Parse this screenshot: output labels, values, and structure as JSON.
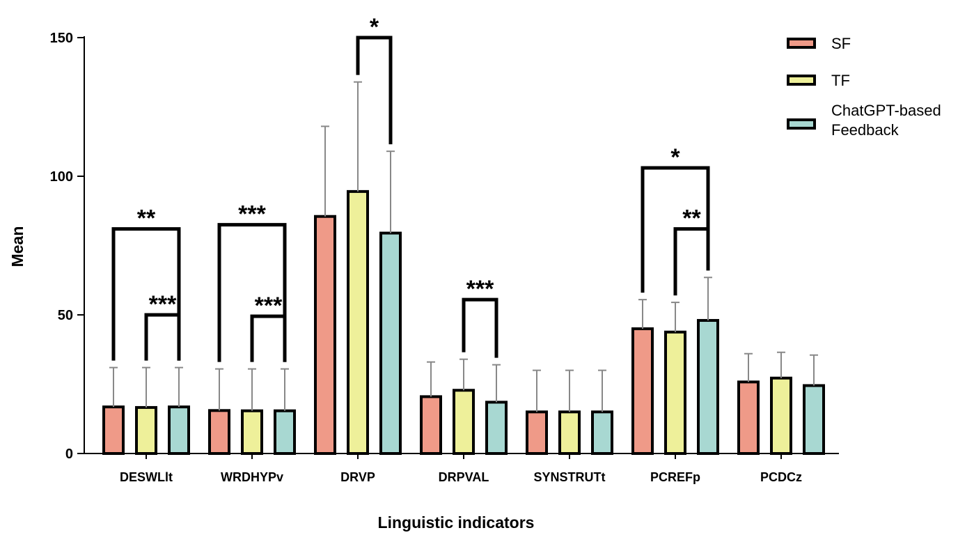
{
  "chart_data": {
    "type": "bar",
    "xlabel": "Linguistic indicators",
    "ylabel": "Mean",
    "ylim": [
      0,
      150
    ],
    "yticks": [
      0,
      50,
      100,
      150
    ],
    "categories": [
      "DESWLlt",
      "WRDHYPv",
      "DRVP",
      "DRPVAL",
      "SYNSTRUTt",
      "PCREFp",
      "PCDCz"
    ],
    "series": [
      {
        "name": "SF",
        "color": "#ef9a88",
        "values": [
          16.8,
          15.5,
          85.5,
          20.5,
          15.0,
          45.0,
          25.8
        ],
        "sd_upper": [
          31,
          30.5,
          118,
          33,
          30,
          55.5,
          36
        ]
      },
      {
        "name": "TF",
        "color": "#eef09a",
        "values": [
          16.6,
          15.4,
          94.5,
          22.8,
          15.0,
          43.8,
          27.2
        ],
        "sd_upper": [
          31,
          30.5,
          134,
          34,
          30,
          54.5,
          36.5
        ]
      },
      {
        "name": "ChatGPT-based Feedback",
        "color": "#a8d8d2",
        "values": [
          16.8,
          15.4,
          79.5,
          18.5,
          15.0,
          48.0,
          24.5
        ],
        "sd_upper": [
          31,
          30.5,
          109,
          32,
          30,
          63.5,
          35.5
        ]
      }
    ],
    "significance": [
      {
        "category": 0,
        "from_series": 0,
        "to_series": 2,
        "label": "**"
      },
      {
        "category": 0,
        "from_series": 1,
        "to_series": 2,
        "label": "***"
      },
      {
        "category": 1,
        "from_series": 0,
        "to_series": 2,
        "label": "***"
      },
      {
        "category": 1,
        "from_series": 1,
        "to_series": 2,
        "label": "***"
      },
      {
        "category": 2,
        "from_series": 1,
        "to_series": 2,
        "label": "*"
      },
      {
        "category": 3,
        "from_series": 1,
        "to_series": 2,
        "label": "***"
      },
      {
        "category": 5,
        "from_series": 0,
        "to_series": 2,
        "label": "*"
      },
      {
        "category": 5,
        "from_series": 1,
        "to_series": 2,
        "label": "**"
      }
    ],
    "legend": {
      "position": "top-right",
      "labels": [
        "SF",
        "TF",
        "ChatGPT-based\nFeedback"
      ]
    },
    "grid": false
  }
}
